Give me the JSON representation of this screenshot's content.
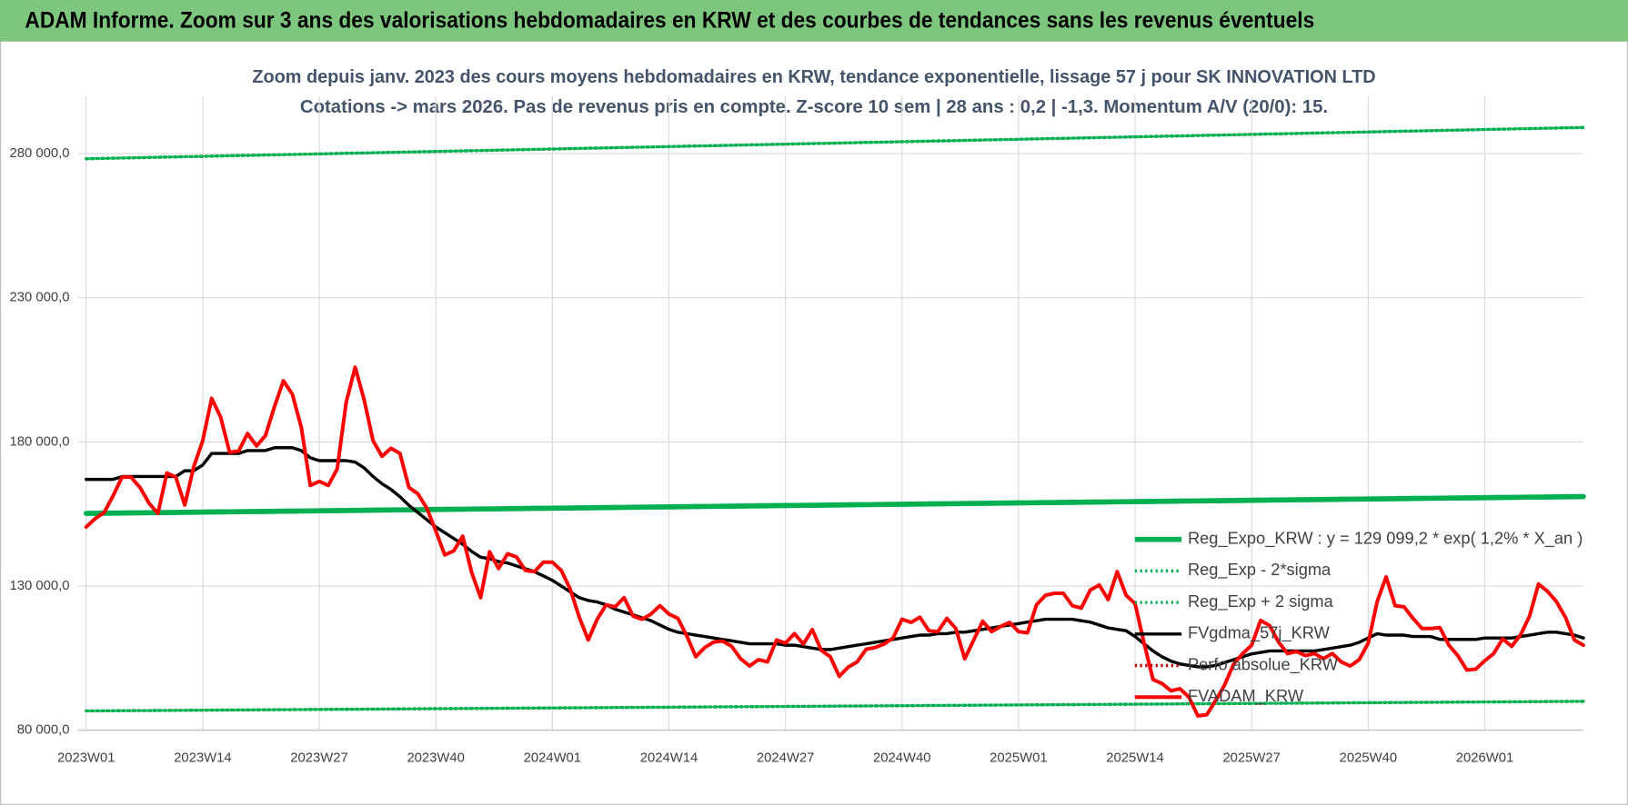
{
  "header": {
    "title": "ADAM Informe. Zoom sur 3 ans des valorisations hebdomadaires en KRW et des courbes de tendances sans les revenus éventuels"
  },
  "chart_data": {
    "type": "line",
    "title": "Zoom depuis janv. 2023 des cours moyens hebdomadaires en KRW, tendance exponentielle, lissage 57 j pour SK INNOVATION LTD",
    "subtitle": "Cotations -> mars 2026. Pas de revenus pris en compte. Z-score 10 sem | 28 ans : 0,2 | -1,3. Momentum A/V (20/0): 15.",
    "categories": [
      "2023W01",
      null,
      null,
      null,
      null,
      null,
      null,
      null,
      null,
      null,
      null,
      null,
      null,
      "2023W14",
      null,
      null,
      null,
      null,
      null,
      null,
      null,
      null,
      null,
      null,
      null,
      null,
      "2023W27",
      null,
      null,
      null,
      null,
      null,
      null,
      null,
      null,
      null,
      null,
      null,
      null,
      "2023W40",
      null,
      null,
      null,
      null,
      null,
      null,
      null,
      null,
      null,
      null,
      null,
      null,
      "2024W01",
      null,
      null,
      null,
      null,
      null,
      null,
      null,
      null,
      null,
      null,
      null,
      null,
      "2024W14",
      null,
      null,
      null,
      null,
      null,
      null,
      null,
      null,
      null,
      null,
      null,
      null,
      "2024W27",
      null,
      null,
      null,
      null,
      null,
      null,
      null,
      null,
      null,
      null,
      null,
      null,
      "2024W40",
      null,
      null,
      null,
      null,
      null,
      null,
      null,
      null,
      null,
      null,
      null,
      null,
      "2025W01",
      null,
      null,
      null,
      null,
      null,
      null,
      null,
      null,
      null,
      null,
      null,
      null,
      "2025W14",
      null,
      null,
      null,
      null,
      null,
      null,
      null,
      null,
      null,
      null,
      null,
      null,
      "2025W27",
      null,
      null,
      null,
      null,
      null,
      null,
      null,
      null,
      null,
      null,
      null,
      null,
      "2025W40",
      null,
      null,
      null,
      null,
      null,
      null,
      null,
      null,
      null,
      null,
      null,
      null,
      "2026W01",
      null,
      null,
      null,
      null,
      null,
      null,
      null,
      null,
      null,
      null,
      null
    ],
    "ylim": [
      80000,
      300000
    ],
    "yticks": [
      {
        "value": 80000,
        "label": "80 000,0"
      },
      {
        "value": 130000,
        "label": "130 000,0"
      },
      {
        "value": 180000,
        "label": "180 000,0"
      },
      {
        "value": 230000,
        "label": "230 000,0"
      },
      {
        "value": 280000,
        "label": "280 000,0"
      }
    ],
    "grid": true,
    "legend": "lower right",
    "series": [
      {
        "name": "Reg_Expo_KRW : y = 129 099,2 * exp( 1,2% *  X_an )",
        "color": "#00b050",
        "style": "solid",
        "values": [
          155200,
          155235,
          155270,
          155305,
          155340,
          155375,
          155410,
          155445,
          155480,
          155515,
          155550,
          155585,
          155620,
          155655,
          155690,
          155725,
          155760,
          155795,
          155830,
          155865,
          155900,
          155935,
          155970,
          156005,
          156040,
          156075,
          156110,
          156145,
          156180,
          156215,
          156250,
          156285,
          156320,
          156355,
          156390,
          156425,
          156460,
          156495,
          156530,
          156565,
          156600,
          156635,
          156670,
          156705,
          156740,
          156775,
          156810,
          156845,
          156880,
          156915,
          156950,
          156985,
          157020,
          157055,
          157090,
          157125,
          157160,
          157195,
          157230,
          157265,
          157300,
          157335,
          157370,
          157405,
          157440,
          157475,
          157510,
          157545,
          157580,
          157615,
          157650,
          157685,
          157720,
          157755,
          157790,
          157825,
          157860,
          157895,
          157930,
          157965,
          158000,
          158035,
          158070,
          158105,
          158140,
          158175,
          158210,
          158245,
          158280,
          158315,
          158350,
          158385,
          158420,
          158455,
          158490,
          158525,
          158560,
          158595,
          158630,
          158665,
          158700,
          158735,
          158770,
          158805,
          158840,
          158875,
          158910,
          158945,
          158980,
          159015,
          159050,
          159085,
          159120,
          159155,
          159190,
          159225,
          159260,
          159295,
          159330,
          159365,
          159400,
          159435,
          159470,
          159505,
          159540,
          159575,
          159610,
          159645,
          159680,
          159715,
          159750,
          159785,
          159820,
          159855,
          159890,
          159925,
          159960,
          159995,
          160030,
          160065,
          160100,
          160135,
          160170,
          160205,
          160240,
          160275,
          160310,
          160345,
          160380,
          160415,
          160450,
          160485,
          160520,
          160555,
          160590,
          160625,
          160660,
          160695,
          160730,
          160765,
          160800,
          160835,
          160870,
          160905,
          160940,
          160975,
          161010,
          161045
        ]
      },
      {
        "name": "Reg_Exp - 2*sigma",
        "color": "#00b050",
        "style": "dotted",
        "values": [
          86700,
          86720,
          86740,
          86760,
          86780,
          86800,
          86820,
          86840,
          86860,
          86880,
          86900,
          86920,
          86940,
          86960,
          86980,
          87000,
          87020,
          87040,
          87060,
          87080,
          87100,
          87120,
          87140,
          87160,
          87180,
          87200,
          87220,
          87240,
          87260,
          87280,
          87300,
          87320,
          87340,
          87360,
          87380,
          87400,
          87420,
          87440,
          87460,
          87480,
          87500,
          87520,
          87540,
          87560,
          87580,
          87600,
          87620,
          87640,
          87660,
          87680,
          87700,
          87720,
          87740,
          87760,
          87780,
          87800,
          87820,
          87840,
          87860,
          87880,
          87900,
          87920,
          87940,
          87960,
          87980,
          88000,
          88020,
          88040,
          88060,
          88080,
          88100,
          88120,
          88140,
          88160,
          88180,
          88200,
          88220,
          88240,
          88260,
          88280,
          88300,
          88320,
          88340,
          88360,
          88380,
          88400,
          88420,
          88440,
          88460,
          88480,
          88500,
          88520,
          88540,
          88560,
          88580,
          88600,
          88620,
          88640,
          88660,
          88680,
          88700,
          88720,
          88740,
          88760,
          88780,
          88800,
          88820,
          88840,
          88860,
          88880,
          88900,
          88920,
          88940,
          88960,
          88980,
          89000,
          89020,
          89040,
          89060,
          89080,
          89100,
          89120,
          89140,
          89160,
          89180,
          89200,
          89220,
          89240,
          89260,
          89280,
          89300,
          89320,
          89340,
          89360,
          89380,
          89400,
          89420,
          89440,
          89460,
          89480,
          89500,
          89520,
          89540,
          89560,
          89580,
          89600,
          89620,
          89640,
          89660,
          89680,
          89700,
          89720,
          89740,
          89760,
          89780,
          89800,
          89820,
          89840,
          89860,
          89880,
          89900,
          89920,
          89940,
          89960,
          89980,
          90000,
          90020,
          90040
        ]
      },
      {
        "name": "Reg_Exp + 2 sigma",
        "color": "#00b050",
        "style": "dotted",
        "values": [
          278200,
          278265,
          278330,
          278395,
          278460,
          278525,
          278590,
          278655,
          278720,
          278785,
          278850,
          278915,
          278980,
          279045,
          279110,
          279175,
          279240,
          279305,
          279370,
          279435,
          279500,
          279565,
          279630,
          279695,
          279760,
          279825,
          279890,
          279955,
          280020,
          280085,
          280150,
          280215,
          280280,
          280345,
          280410,
          280475,
          280540,
          280605,
          280670,
          280735,
          280800,
          280865,
          280930,
          280995,
          281060,
          281125,
          281190,
          281255,
          281320,
          281385,
          281450,
          281515,
          281580,
          281645,
          281710,
          281775,
          281840,
          281905,
          281970,
          282035,
          282100,
          282165,
          282230,
          282295,
          282360,
          282425,
          282490,
          282555,
          282620,
          282685,
          282750,
          282815,
          282880,
          282945,
          283010,
          283075,
          283140,
          283205,
          283270,
          283335,
          283400,
          283465,
          283530,
          283595,
          283660,
          283725,
          283790,
          283855,
          283920,
          283985,
          284050,
          284115,
          284180,
          284245,
          284310,
          284375,
          284440,
          284505,
          284570,
          284635,
          284700,
          284765,
          284830,
          284895,
          284960,
          285025,
          285090,
          285155,
          285220,
          285285,
          285350,
          285415,
          285480,
          285545,
          285610,
          285675,
          285740,
          285805,
          285870,
          285935,
          286000,
          286065,
          286130,
          286195,
          286260,
          286325,
          286390,
          286455,
          286520,
          286585,
          286650,
          286715,
          286780,
          286845,
          286910,
          286975,
          287040,
          287105,
          287170,
          287235,
          287300,
          287365,
          287430,
          287495,
          287560,
          287625,
          287690,
          287755,
          287820,
          287885,
          287950,
          288015,
          288080,
          288145,
          288210,
          288275,
          288340,
          288405,
          288470,
          288535,
          288600,
          288665,
          288730,
          288795,
          288860,
          288925,
          288990,
          289055
        ]
      },
      {
        "name": "FVgdma_57j_KRW",
        "color": "#000000",
        "style": "solid",
        "values": [
          167000,
          167000,
          167000,
          167000,
          168000,
          168000,
          168000,
          168000,
          168000,
          168000,
          168000,
          170000,
          170000,
          172000,
          176000,
          176000,
          176000,
          176000,
          177000,
          177000,
          177000,
          178000,
          178000,
          178000,
          177000,
          174500,
          173500,
          173500,
          173500,
          173500,
          173000,
          171000,
          168000,
          165500,
          163500,
          161000,
          158000,
          155500,
          153000,
          150500,
          148500,
          146500,
          144500,
          142000,
          140000,
          139500,
          138500,
          138000,
          137000,
          136000,
          135000,
          133500,
          132000,
          130000,
          128000,
          126000,
          125000,
          124500,
          123500,
          122000,
          121000,
          120000,
          119000,
          118000,
          116500,
          115000,
          114000,
          113500,
          113000,
          112500,
          112000,
          111500,
          111000,
          110500,
          110000,
          110000,
          110000,
          110000,
          109500,
          109500,
          109000,
          108500,
          108000,
          108000,
          108500,
          109000,
          109500,
          110000,
          110500,
          111000,
          111500,
          112000,
          112500,
          113000,
          113000,
          113500,
          113500,
          114000,
          114000,
          114500,
          115000,
          115500,
          116000,
          116500,
          117000,
          117500,
          118000,
          118500,
          118500,
          118500,
          118500,
          118000,
          117500,
          116500,
          115500,
          115000,
          114500,
          112500,
          110000,
          107500,
          105500,
          104000,
          103000,
          102500,
          102000,
          102000,
          102500,
          103500,
          104500,
          105500,
          106500,
          107000,
          107500,
          107500,
          107500,
          107500,
          107500,
          107500,
          108000,
          108500,
          109000,
          109500,
          110500,
          112000,
          113500,
          113000,
          113000,
          113000,
          112500,
          112500,
          112500,
          111500,
          111500,
          111500,
          111500,
          111500,
          112000,
          112000,
          112000,
          112000,
          112500,
          113000,
          113500,
          114000,
          114000,
          113500,
          113000,
          112000
        ]
      },
      {
        "name": "Perfo absolue_KRW",
        "color": "#c00000",
        "style": "dotted"
      },
      {
        "name": "FVADAM_KRW",
        "color": "#ff0000",
        "style": "solid",
        "values": [
          150500,
          153400,
          155500,
          161300,
          167800,
          167800,
          164200,
          158800,
          155200,
          169200,
          167800,
          158100,
          171400,
          180400,
          195100,
          188600,
          176400,
          176800,
          182900,
          178600,
          182200,
          192200,
          201200,
          196500,
          185000,
          164900,
          166300,
          164900,
          170600,
          193700,
          205900,
          194700,
          180400,
          175000,
          177800,
          176000,
          164200,
          162000,
          157000,
          149100,
          140800,
          142200,
          147300,
          134700,
          126000,
          141900,
          136100,
          141200,
          140100,
          135400,
          135000,
          138300,
          138300,
          135400,
          128900,
          119200,
          111300,
          118500,
          123500,
          122800,
          126000,
          119600,
          118500,
          120300,
          123200,
          120300,
          118800,
          112700,
          105500,
          108700,
          110600,
          110900,
          109100,
          104800,
          102300,
          104500,
          103700,
          111300,
          110200,
          113500,
          109900,
          114900,
          107700,
          105500,
          98700,
          101900,
          103700,
          108100,
          108700,
          109900,
          112000,
          118500,
          117400,
          119200,
          114500,
          114200,
          118800,
          115300,
          104800,
          111300,
          117800,
          114200,
          116000,
          117400,
          114200,
          113800,
          123500,
          126800,
          127500,
          127500,
          123200,
          122400,
          128600,
          130400,
          125300,
          135000,
          126800,
          123900,
          110200,
          97600,
          96200,
          93700,
          94400,
          91500,
          85000,
          85400,
          90400,
          95800,
          103000,
          106600,
          109500,
          118100,
          116300,
          110600,
          106600,
          107300,
          105900,
          106600,
          104800,
          106600,
          103700,
          102300,
          104500,
          110200,
          124600,
          133200,
          123200,
          122800,
          118800,
          115300,
          115300,
          115600,
          109500,
          105900,
          100900,
          101200,
          104100,
          106600,
          111700,
          109100,
          113100,
          119600,
          130700,
          128200,
          124600,
          119200,
          111300,
          109500
        ]
      }
    ]
  }
}
